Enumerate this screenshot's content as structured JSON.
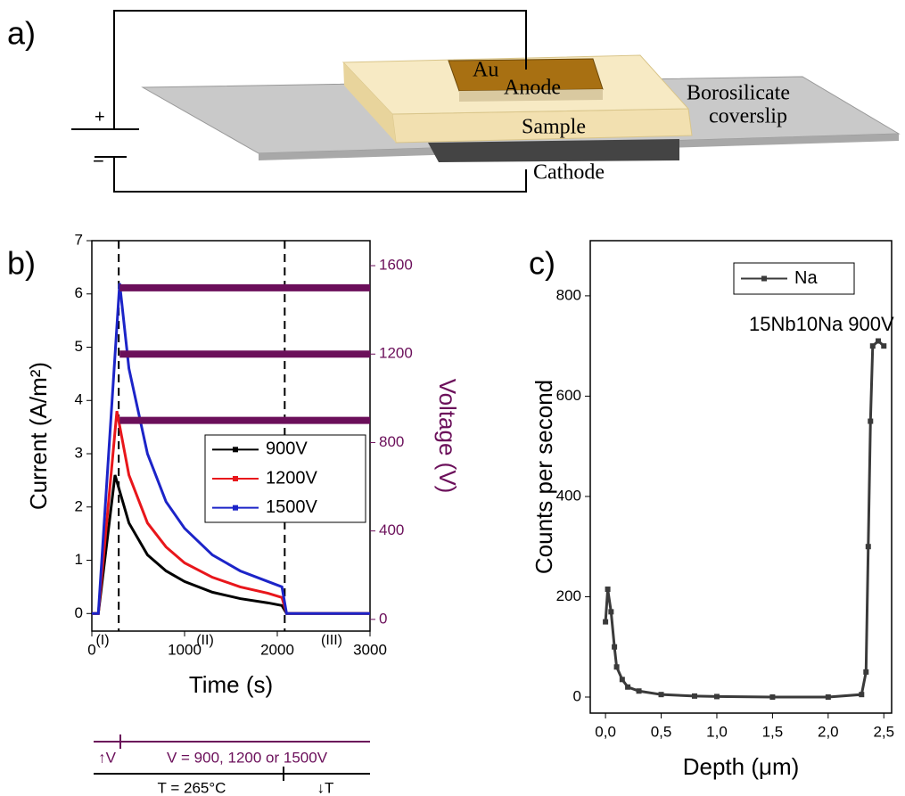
{
  "panel_labels": [
    "a)",
    "b)",
    "c)"
  ],
  "diagram": {
    "labels": [
      "Au",
      "Anode",
      "Sample",
      "Borosilicate",
      "coverslip",
      "Cathode",
      "+",
      "−"
    ]
  },
  "chart_data": [
    {
      "type": "line",
      "xlabel": "Time (s)",
      "ylabel": "Current (A/m²)",
      "y2label": "Voltage (V)",
      "xlim": [
        0,
        3000
      ],
      "xticks": [
        0,
        1000,
        2000,
        3000
      ],
      "ylim": [
        -0.33,
        7
      ],
      "yticks": [
        0,
        1,
        2,
        3,
        4,
        5,
        6,
        7
      ],
      "y2lim": [
        -53,
        1713
      ],
      "y2ticks": [
        0,
        400,
        800,
        1200,
        1600
      ],
      "y2color": "#6b0f5a",
      "vlines": [
        290,
        2080
      ],
      "regions": [
        "(I)",
        "(II)",
        "(III)"
      ],
      "timeline": [
        "↑V",
        "V = 900, 1200 or 1500V",
        "T = 265°C",
        "↓T"
      ],
      "series": [
        {
          "name": "900V",
          "color": "#000000",
          "x": [
            0,
            70,
            250,
            400,
            600,
            800,
            1000,
            1300,
            1600,
            1900,
            2050,
            2100,
            2500,
            3000
          ],
          "values": [
            0,
            0,
            2.6,
            1.7,
            1.1,
            0.8,
            0.6,
            0.4,
            0.28,
            0.2,
            0.15,
            0,
            0,
            0
          ]
        },
        {
          "name": "1200V",
          "color": "#e8161b",
          "x": [
            0,
            70,
            270,
            400,
            600,
            800,
            1000,
            1300,
            1600,
            1900,
            2050,
            2100,
            2500,
            3000
          ],
          "values": [
            0,
            0,
            3.8,
            2.6,
            1.7,
            1.25,
            0.95,
            0.68,
            0.5,
            0.38,
            0.3,
            0,
            0,
            0
          ]
        },
        {
          "name": "1500V",
          "color": "#1c24c8",
          "x": [
            0,
            70,
            300,
            400,
            600,
            800,
            1000,
            1300,
            1600,
            1900,
            2050,
            2100,
            2500,
            3000
          ],
          "values": [
            0,
            0,
            6.2,
            4.6,
            3.0,
            2.1,
            1.6,
            1.1,
            0.8,
            0.6,
            0.5,
            0,
            0,
            0
          ]
        },
        {
          "color": "#6b0f5a",
          "axis": "y2",
          "x": [
            300,
            3000
          ],
          "values": [
            900,
            900
          ]
        },
        {
          "color": "#6b0f5a",
          "axis": "y2",
          "x": [
            300,
            3000
          ],
          "values": [
            1200,
            1200
          ]
        },
        {
          "color": "#6b0f5a",
          "axis": "y2",
          "x": [
            300,
            3000
          ],
          "values": [
            1500,
            1500
          ]
        }
      ]
    },
    {
      "type": "line",
      "xlabel": "Depth (μm)",
      "ylabel": "Counts per second",
      "annotation": "15Nb10Na 900V",
      "xlim": [
        -0.137,
        2.57
      ],
      "xticks": [
        {
          "value": 0,
          "label": "0,0"
        },
        {
          "value": 0.5,
          "label": "0,5"
        },
        {
          "value": 1,
          "label": "1,0"
        },
        {
          "value": 1.5,
          "label": "1,5"
        },
        {
          "value": 2,
          "label": "2,0"
        },
        {
          "value": 2.5,
          "label": "2,5"
        }
      ],
      "ylim": [
        -32,
        910
      ],
      "yticks": [
        0,
        200,
        400,
        600,
        800
      ],
      "series": [
        {
          "name": "Na",
          "color": "#3a3a3a",
          "x": [
            0,
            0.02,
            0.05,
            0.08,
            0.1,
            0.15,
            0.2,
            0.3,
            0.5,
            0.8,
            1.0,
            1.5,
            2.0,
            2.3,
            2.34,
            2.36,
            2.38,
            2.4,
            2.45,
            2.5
          ],
          "values": [
            150,
            215,
            170,
            100,
            60,
            35,
            20,
            12,
            5,
            2,
            1,
            0,
            0,
            5,
            50,
            300,
            550,
            700,
            710,
            700
          ]
        }
      ]
    }
  ]
}
